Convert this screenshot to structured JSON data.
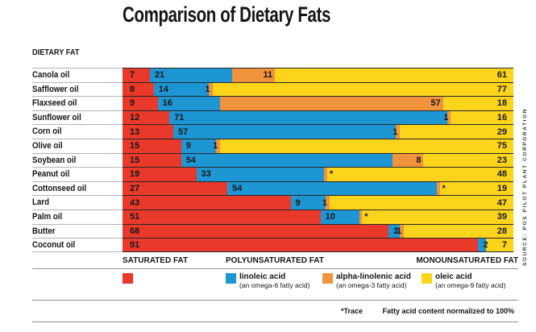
{
  "title": "Comparison of Dietary Fats",
  "axis_header": "DIETARY FAT",
  "source": "SOURCE: POS PILOT PLANT CORPORATION",
  "footnotes": {
    "trace": "*Trace",
    "normalized": "Fatty acid content normalized to 100%"
  },
  "colors": {
    "saturated": "#E8392B",
    "linoleic": "#1E96D3",
    "alpha_linolenic": "#F1923C",
    "oleic": "#FDD41C"
  },
  "legend": {
    "saturated_header": "SATURATED FAT",
    "poly_header": "POLYUNSATURATED FAT",
    "mono_header": "MONOUNSATURATED FAT",
    "items": [
      {
        "key": "linoleic",
        "label": "linoleic acid",
        "sub": "(an omega-6 fatty acid)"
      },
      {
        "key": "alpha_linolenic",
        "label": "alpha-linolenic acid",
        "sub": "(an omega-3 fatty acid)"
      },
      {
        "key": "oleic",
        "label": "oleic acid",
        "sub": "(an omega-9 fatty acid)"
      }
    ]
  },
  "chart_data": {
    "type": "bar",
    "orientation": "horizontal",
    "stacked": true,
    "normalized_to": 100,
    "trace_marker": "*",
    "categories": [
      "Canola oil",
      "Safflower oil",
      "Flaxseed oil",
      "Sunflower oil",
      "Corn oil",
      "Olive oil",
      "Soybean oil",
      "Peanut oil",
      "Cottonseed oil",
      "Lard",
      "Palm oil",
      "Butter",
      "Coconut oil"
    ],
    "series": [
      {
        "key": "saturated",
        "name": "saturated fat",
        "color": "#E8392B",
        "values": [
          7,
          8,
          9,
          12,
          13,
          15,
          15,
          19,
          27,
          43,
          51,
          68,
          91
        ]
      },
      {
        "key": "linoleic",
        "name": "linoleic acid (an omega-6 fatty acid)",
        "color": "#1E96D3",
        "values": [
          21,
          14,
          16,
          71,
          57,
          9,
          54,
          33,
          54,
          9,
          10,
          3,
          2
        ]
      },
      {
        "key": "alpha_linolenic",
        "name": "alpha-linolenic acid (an omega-3 fatty acid)",
        "color": "#F1923C",
        "values": [
          11,
          1,
          57,
          1,
          1,
          1,
          8,
          "*",
          "*",
          1,
          "*",
          1,
          0
        ]
      },
      {
        "key": "oleic",
        "name": "oleic acid (an omega-9 fatty acid)",
        "color": "#FDD41C",
        "values": [
          61,
          77,
          18,
          16,
          29,
          75,
          23,
          48,
          19,
          47,
          39,
          28,
          7
        ]
      }
    ]
  }
}
